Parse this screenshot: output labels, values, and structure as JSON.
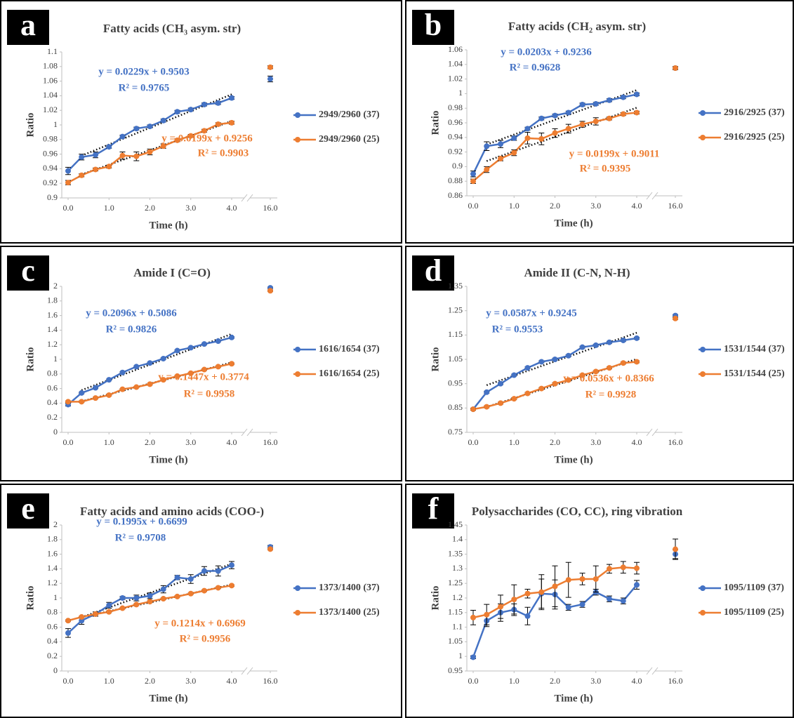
{
  "chart_data": [
    {
      "type": "line",
      "panel": "a",
      "title": "Fatty acids (CH₃ asym. str)",
      "x_label": "Time (h)",
      "y_label": "Ratio",
      "x": [
        0,
        0.33,
        0.67,
        1,
        1.33,
        1.67,
        2,
        2.33,
        2.67,
        3,
        3.33,
        3.67,
        4,
        16
      ],
      "xlim": [
        0,
        16
      ],
      "axis_break": [
        4,
        16
      ],
      "xticks": [
        {
          "value": 0,
          "label": "0.0"
        },
        {
          "value": 1,
          "label": "1.0"
        },
        {
          "value": 2,
          "label": "2.0"
        },
        {
          "value": 3,
          "label": "3.0"
        },
        {
          "value": 4,
          "label": "4.0"
        },
        {
          "value": 16,
          "label": "16.0"
        }
      ],
      "ylim": [
        0.9,
        1.1
      ],
      "yticks": [
        0.9,
        0.92,
        0.94,
        0.96,
        0.98,
        1,
        1.02,
        1.04,
        1.06,
        1.08,
        1.1
      ],
      "series": [
        {
          "name": "2949/2960 (37)",
          "color": "#4472c4",
          "values": [
            0.937,
            0.956,
            0.959,
            0.97,
            0.984,
            0.995,
            0.998,
            1.006,
            1.018,
            1.021,
            1.028,
            1.03,
            1.037,
            1.063
          ],
          "errors": [
            0.005,
            0.004,
            0.004,
            0.002,
            0.002,
            0.002,
            0.002,
            0.002,
            0.002,
            0.002,
            0.002,
            0.002,
            0.002,
            0.004
          ],
          "trend": {
            "slope": 0.0229,
            "intercept": 0.9503,
            "equation": "y = 0.0229x + 0.9503",
            "r2": "R² = 0.9765"
          }
        },
        {
          "name": "2949/2960 (25)",
          "color": "#ed7d31",
          "values": [
            0.921,
            0.931,
            0.939,
            0.943,
            0.958,
            0.957,
            0.963,
            0.971,
            0.979,
            0.985,
            0.992,
            1.001,
            1.003,
            1.079
          ],
          "errors": [
            0.003,
            0.002,
            0.002,
            0.002,
            0.005,
            0.006,
            0.004,
            0.003,
            0.002,
            0.002,
            0.002,
            0.002,
            0.002,
            0.002
          ],
          "trend": {
            "slope": 0.0199,
            "intercept": 0.9256,
            "equation": "y = 0.0199x + 0.9256",
            "r2": "R² = 0.9903"
          }
        }
      ]
    },
    {
      "type": "line",
      "panel": "b",
      "title": "Fatty acids (CH₂ asym. str)",
      "x_label": "Time (h)",
      "y_label": "Ratio",
      "x": [
        0,
        0.33,
        0.67,
        1,
        1.33,
        1.67,
        2,
        2.33,
        2.67,
        3,
        3.33,
        3.67,
        4,
        16
      ],
      "xlim": [
        0,
        16
      ],
      "axis_break": [
        4,
        16
      ],
      "xticks": [
        {
          "value": 0,
          "label": "0.0"
        },
        {
          "value": 1,
          "label": "1.0"
        },
        {
          "value": 2,
          "label": "2.0"
        },
        {
          "value": 3,
          "label": "3.0"
        },
        {
          "value": 4,
          "label": "4.0"
        },
        {
          "value": 16,
          "label": "16.0"
        }
      ],
      "ylim": [
        0.86,
        1.06
      ],
      "yticks": [
        0.86,
        0.88,
        0.9,
        0.92,
        0.94,
        0.96,
        0.98,
        1,
        1.02,
        1.04,
        1.06
      ],
      "series": [
        {
          "name": "2916/2925 (37)",
          "color": "#4472c4",
          "values": [
            0.89,
            0.928,
            0.931,
            0.939,
            0.952,
            0.966,
            0.97,
            0.974,
            0.985,
            0.986,
            0.991,
            0.995,
            0.999,
            1.035
          ],
          "errors": [
            0.004,
            0.006,
            0.005,
            0.003,
            0.002,
            0.002,
            0.002,
            0.002,
            0.002,
            0.002,
            0.002,
            0.002,
            0.002,
            0.002
          ],
          "trend": {
            "slope": 0.0203,
            "intercept": 0.9236,
            "equation": "y = 0.0203x + 0.9236",
            "r2": "R² = 0.9628"
          }
        },
        {
          "name": "2916/2925 (25)",
          "color": "#ed7d31",
          "values": [
            0.88,
            0.896,
            0.911,
            0.919,
            0.939,
            0.938,
            0.946,
            0.952,
            0.958,
            0.962,
            0.966,
            0.972,
            0.974,
            1.035
          ],
          "errors": [
            0.003,
            0.004,
            0.003,
            0.004,
            0.008,
            0.008,
            0.006,
            0.006,
            0.004,
            0.005,
            0.002,
            0.002,
            0.002,
            0.002
          ],
          "trend": {
            "slope": 0.0199,
            "intercept": 0.9011,
            "equation": "y = 0.0199x + 0.9011",
            "r2": "R² = 0.9395"
          }
        }
      ]
    },
    {
      "type": "line",
      "panel": "c",
      "title": "Amide I (C=O)",
      "x_label": "Time (h)",
      "y_label": "Ratio",
      "x": [
        0,
        0.33,
        0.67,
        1,
        1.33,
        1.67,
        2,
        2.33,
        2.67,
        3,
        3.33,
        3.67,
        4,
        16
      ],
      "xlim": [
        0,
        16
      ],
      "axis_break": [
        4,
        16
      ],
      "xticks": [
        {
          "value": 0,
          "label": "0.0"
        },
        {
          "value": 1,
          "label": "1.0"
        },
        {
          "value": 2,
          "label": "2.0"
        },
        {
          "value": 3,
          "label": "3.0"
        },
        {
          "value": 4,
          "label": "4.0"
        },
        {
          "value": 16,
          "label": "16.0"
        }
      ],
      "ylim": [
        0,
        2
      ],
      "yticks": [
        0,
        0.2,
        0.4,
        0.6,
        0.8,
        1,
        1.2,
        1.4,
        1.6,
        1.8,
        2
      ],
      "series": [
        {
          "name": "1616/1654 (37)",
          "color": "#4472c4",
          "values": [
            0.38,
            0.54,
            0.61,
            0.72,
            0.82,
            0.9,
            0.95,
            1.01,
            1.12,
            1.16,
            1.21,
            1.25,
            1.3,
            1.98
          ],
          "errors": [
            0.02,
            0.01,
            0.01,
            0.01,
            0.01,
            0.01,
            0.01,
            0.01,
            0.01,
            0.01,
            0.01,
            0.01,
            0.01,
            0.01
          ],
          "trend": {
            "slope": 0.2096,
            "intercept": 0.5086,
            "equation": "y = 0.2096x + 0.5086",
            "r2": "R² = 0.9826"
          }
        },
        {
          "name": "1616/1654 (25)",
          "color": "#ed7d31",
          "values": [
            0.42,
            0.42,
            0.47,
            0.51,
            0.59,
            0.62,
            0.66,
            0.72,
            0.77,
            0.81,
            0.86,
            0.9,
            0.94,
            1.94
          ],
          "errors": [
            0.01,
            0.01,
            0.01,
            0.01,
            0.01,
            0.01,
            0.01,
            0.01,
            0.01,
            0.01,
            0.01,
            0.01,
            0.01,
            0.01
          ],
          "trend": {
            "slope": 0.1447,
            "intercept": 0.3774,
            "equation": "y = 0.1447x + 0.3774",
            "r2": "R² = 0.9958"
          }
        }
      ]
    },
    {
      "type": "line",
      "panel": "d",
      "title": "Amide II (C-N, N-H)",
      "x_label": "Time (h)",
      "y_label": "Ratio",
      "x": [
        0,
        0.33,
        0.67,
        1,
        1.33,
        1.67,
        2,
        2.33,
        2.67,
        3,
        3.33,
        3.67,
        4,
        16
      ],
      "xlim": [
        0,
        16
      ],
      "axis_break": [
        4,
        16
      ],
      "xticks": [
        {
          "value": 0,
          "label": "0.0"
        },
        {
          "value": 1,
          "label": "1.0"
        },
        {
          "value": 2,
          "label": "2.0"
        },
        {
          "value": 3,
          "label": "3.0"
        },
        {
          "value": 4,
          "label": "4.0"
        },
        {
          "value": 16,
          "label": "16.0"
        }
      ],
      "ylim": [
        0.75,
        1.35
      ],
      "yticks": [
        0.75,
        0.85,
        0.95,
        1.05,
        1.15,
        1.25,
        1.35
      ],
      "series": [
        {
          "name": "1531/1544 (37)",
          "color": "#4472c4",
          "values": [
            0.845,
            0.915,
            0.95,
            0.985,
            1.015,
            1.04,
            1.05,
            1.065,
            1.1,
            1.108,
            1.12,
            1.128,
            1.137,
            1.23
          ],
          "errors": [
            0.004,
            0.004,
            0.004,
            0.004,
            0.004,
            0.004,
            0.004,
            0.004,
            0.004,
            0.004,
            0.004,
            0.004,
            0.004,
            0.004
          ],
          "trend": {
            "slope": 0.0587,
            "intercept": 0.9245,
            "equation": "y = 0.0587x + 0.9245",
            "r2": "R² = 0.9553"
          }
        },
        {
          "name": "1531/1544 (25)",
          "color": "#ed7d31",
          "values": [
            0.845,
            0.855,
            0.87,
            0.888,
            0.91,
            0.93,
            0.95,
            0.965,
            0.985,
            1.0,
            1.015,
            1.035,
            1.04,
            1.218
          ],
          "errors": [
            0.004,
            0.004,
            0.004,
            0.004,
            0.004,
            0.004,
            0.004,
            0.004,
            0.004,
            0.004,
            0.004,
            0.004,
            0.004,
            0.004
          ],
          "trend": {
            "slope": 0.0536,
            "intercept": 0.8366,
            "equation": "y = 0.0536x + 0.8366",
            "r2": "R² = 0.9928"
          }
        }
      ]
    },
    {
      "type": "line",
      "panel": "e",
      "title": "Fatty acids and amino acids (COO-)",
      "x_label": "Time (h)",
      "y_label": "Ratio",
      "x": [
        0,
        0.33,
        0.67,
        1,
        1.33,
        1.67,
        2,
        2.33,
        2.67,
        3,
        3.33,
        3.67,
        4,
        16
      ],
      "xlim": [
        0,
        16
      ],
      "axis_break": [
        4,
        16
      ],
      "xticks": [
        {
          "value": 0,
          "label": "0.0"
        },
        {
          "value": 1,
          "label": "1.0"
        },
        {
          "value": 2,
          "label": "2.0"
        },
        {
          "value": 3,
          "label": "3.0"
        },
        {
          "value": 4,
          "label": "4.0"
        },
        {
          "value": 16,
          "label": "16.0"
        }
      ],
      "ylim": [
        0,
        2
      ],
      "yticks": [
        0,
        0.2,
        0.4,
        0.6,
        0.8,
        1,
        1.2,
        1.4,
        1.6,
        1.8,
        2
      ],
      "series": [
        {
          "name": "1373/1400 (37)",
          "color": "#4472c4",
          "values": [
            0.52,
            0.69,
            0.78,
            0.9,
            1.0,
            1.0,
            1.03,
            1.12,
            1.28,
            1.26,
            1.37,
            1.37,
            1.45,
            1.7
          ],
          "errors": [
            0.06,
            0.05,
            0.03,
            0.04,
            0.02,
            0.04,
            0.04,
            0.05,
            0.03,
            0.06,
            0.06,
            0.07,
            0.05,
            0.02
          ],
          "trend": {
            "slope": 0.1995,
            "intercept": 0.6699,
            "equation": "y = 0.1995x + 0.6699",
            "r2": "R² = 0.9708"
          }
        },
        {
          "name": "1373/1400 (25)",
          "color": "#ed7d31",
          "values": [
            0.69,
            0.74,
            0.78,
            0.81,
            0.86,
            0.91,
            0.95,
            0.99,
            1.02,
            1.06,
            1.1,
            1.14,
            1.17,
            1.67
          ],
          "errors": [
            0.01,
            0.01,
            0.01,
            0.01,
            0.01,
            0.01,
            0.01,
            0.01,
            0.01,
            0.01,
            0.01,
            0.01,
            0.01,
            0.01
          ],
          "trend": {
            "slope": 0.1214,
            "intercept": 0.6969,
            "equation": "y = 0.1214x + 0.6969",
            "r2": "R² = 0.9956"
          }
        }
      ]
    },
    {
      "type": "line",
      "panel": "f",
      "title": "Polysaccharides (CO, CC), ring vibration",
      "x_label": "Time (h)",
      "y_label": "Ratio",
      "x": [
        0,
        0.33,
        0.67,
        1,
        1.33,
        1.67,
        2,
        2.33,
        2.67,
        3,
        3.33,
        3.67,
        4,
        16
      ],
      "xlim": [
        0,
        16
      ],
      "axis_break": [
        4,
        16
      ],
      "xticks": [
        {
          "value": 0,
          "label": "0.0"
        },
        {
          "value": 1,
          "label": "1.0"
        },
        {
          "value": 2,
          "label": "2.0"
        },
        {
          "value": 3,
          "label": "3.0"
        },
        {
          "value": 4,
          "label": "4.0"
        },
        {
          "value": 16,
          "label": "16.0"
        }
      ],
      "ylim": [
        0.95,
        1.45
      ],
      "yticks": [
        0.95,
        1,
        1.05,
        1.1,
        1.15,
        1.2,
        1.25,
        1.3,
        1.35,
        1.4,
        1.45
      ],
      "series": [
        {
          "name": "1095/1109 (37)",
          "color": "#4472c4",
          "values": [
            0.997,
            1.122,
            1.15,
            1.16,
            1.138,
            1.215,
            1.212,
            1.168,
            1.178,
            1.22,
            1.197,
            1.19,
            1.245,
            1.35
          ],
          "errors": [
            0.005,
            0.02,
            0.03,
            0.02,
            0.03,
            0.05,
            0.05,
            0.01,
            0.01,
            0.01,
            0.01,
            0.01,
            0.015,
            0.015
          ]
        },
        {
          "name": "1095/1109 (25)",
          "color": "#ed7d31",
          "values": [
            1.133,
            1.143,
            1.17,
            1.195,
            1.215,
            1.22,
            1.24,
            1.262,
            1.265,
            1.265,
            1.3,
            1.305,
            1.302,
            1.367
          ],
          "errors": [
            0.025,
            0.035,
            0.04,
            0.05,
            0.015,
            0.06,
            0.07,
            0.06,
            0.02,
            0.045,
            0.015,
            0.02,
            0.02,
            0.035
          ]
        }
      ]
    }
  ]
}
